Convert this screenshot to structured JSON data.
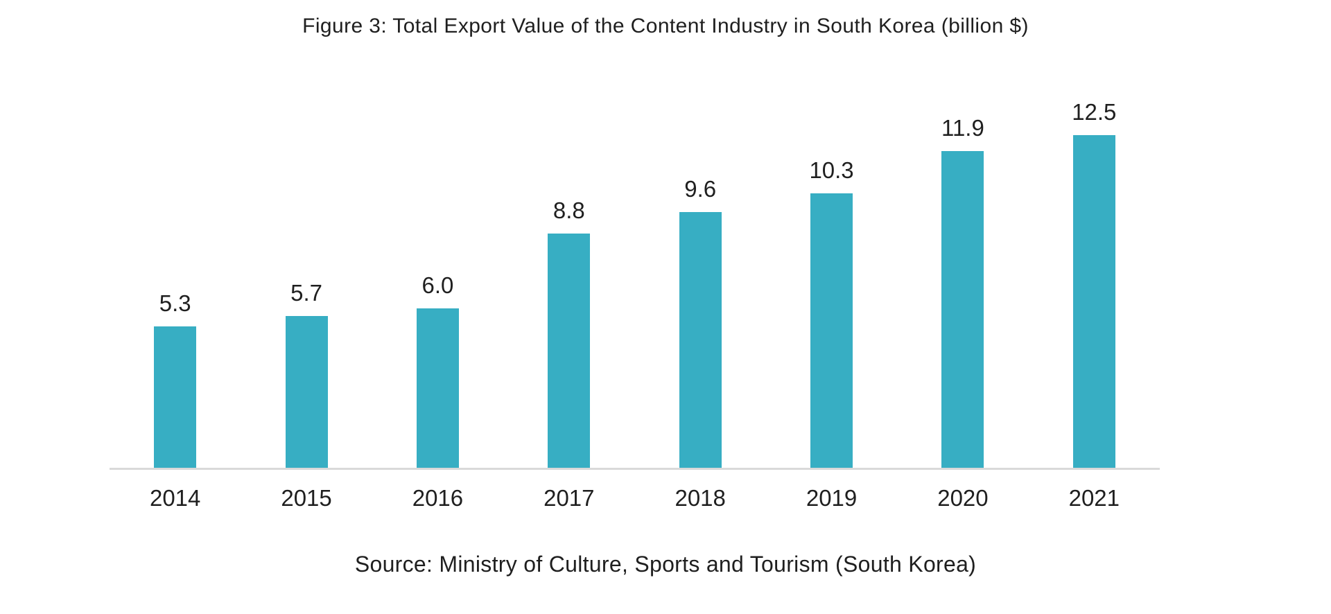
{
  "chart_data": {
    "type": "bar",
    "title": "Figure 3: Total Export Value of the Content Industry in South Korea (billion $)",
    "source": "Source: Ministry of Culture, Sports and Tourism (South Korea)",
    "categories": [
      "2014",
      "2015",
      "2016",
      "2017",
      "2018",
      "2019",
      "2020",
      "2021"
    ],
    "values": [
      5.3,
      5.7,
      6.0,
      8.8,
      9.6,
      10.3,
      11.9,
      12.5
    ],
    "value_labels": [
      "5.3",
      "5.7",
      "6.0",
      "8.8",
      "9.6",
      "10.3",
      "11.9",
      "12.5"
    ],
    "xlabel": "",
    "ylabel": "",
    "ylim": [
      0,
      13.5
    ],
    "grid": false,
    "legend": false,
    "bar_color": "#37AEC3",
    "axis_line_color": "#D9D9D9",
    "text_color": "#1F1F1F",
    "background_color": "#FFFFFF"
  }
}
